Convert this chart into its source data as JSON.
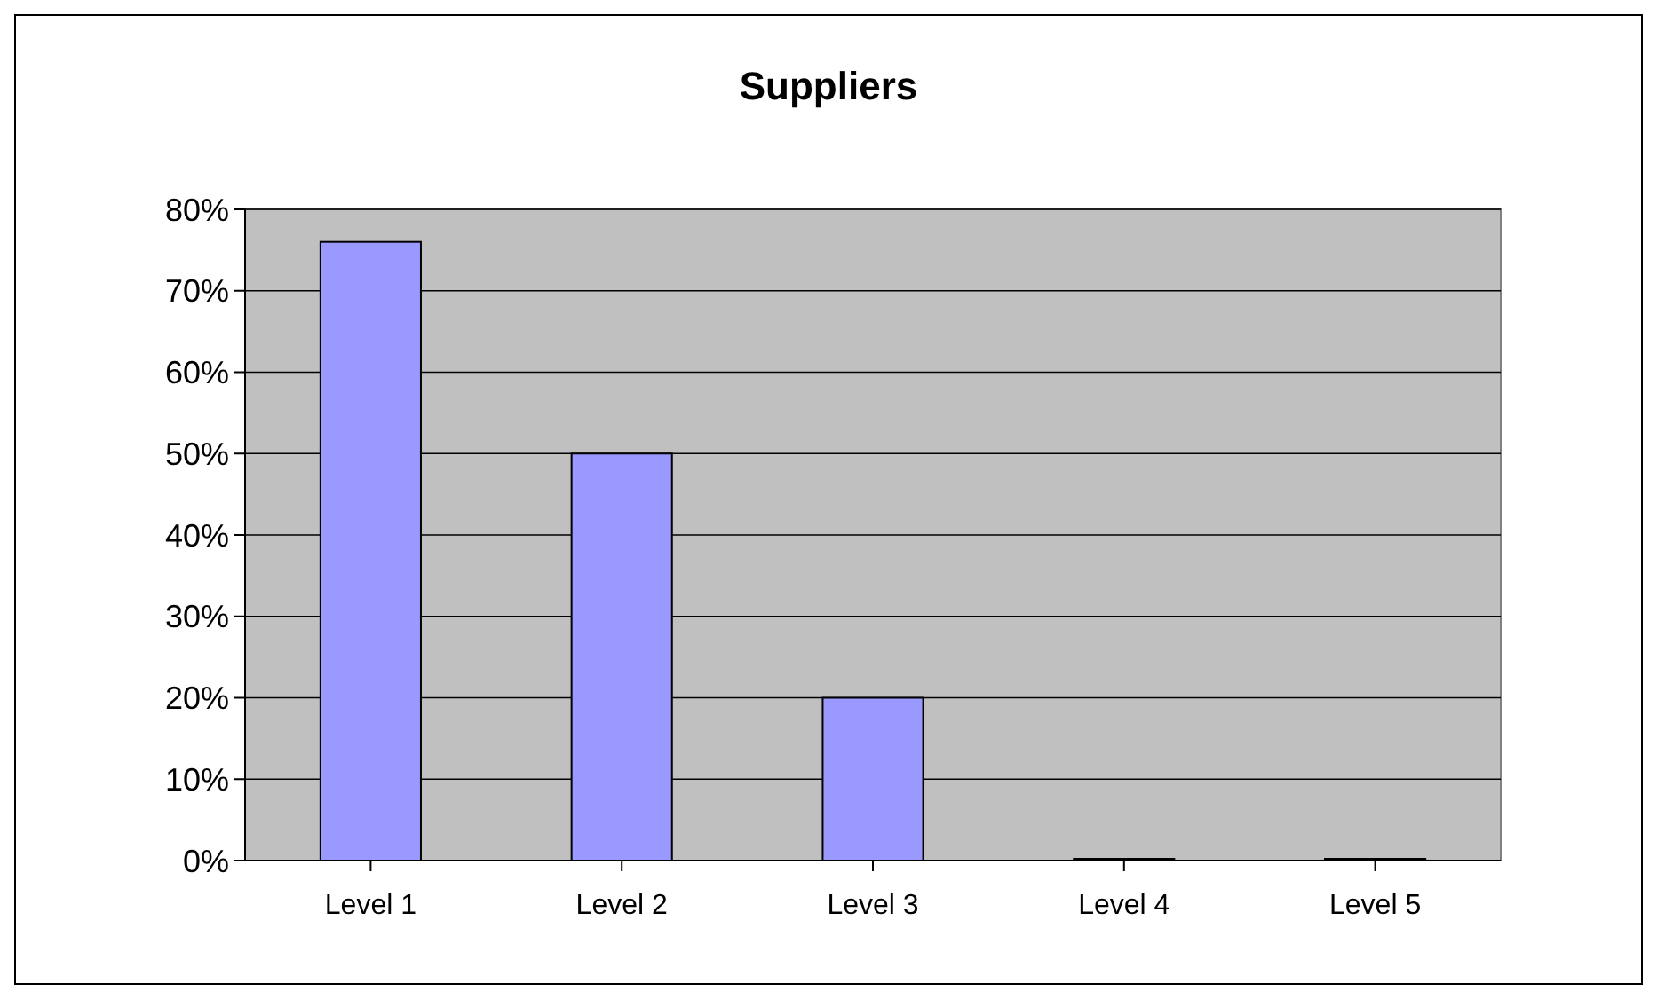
{
  "chart_data": {
    "type": "bar",
    "title": "Suppliers",
    "categories": [
      "Level 1",
      "Level 2",
      "Level 3",
      "Level 4",
      "Level 5"
    ],
    "values": [
      76,
      50,
      20,
      0,
      0
    ],
    "color": "#9999ff",
    "ylim": [
      0,
      80
    ],
    "yticks": [
      {
        "value": 0,
        "label": "0%"
      },
      {
        "value": 10,
        "label": "10%"
      },
      {
        "value": 20,
        "label": "20%"
      },
      {
        "value": 30,
        "label": "30%"
      },
      {
        "value": 40,
        "label": "40%"
      },
      {
        "value": 50,
        "label": "50%"
      },
      {
        "value": 60,
        "label": "60%"
      },
      {
        "value": 70,
        "label": "70%"
      },
      {
        "value": 80,
        "label": "80%"
      }
    ],
    "grid": true
  }
}
